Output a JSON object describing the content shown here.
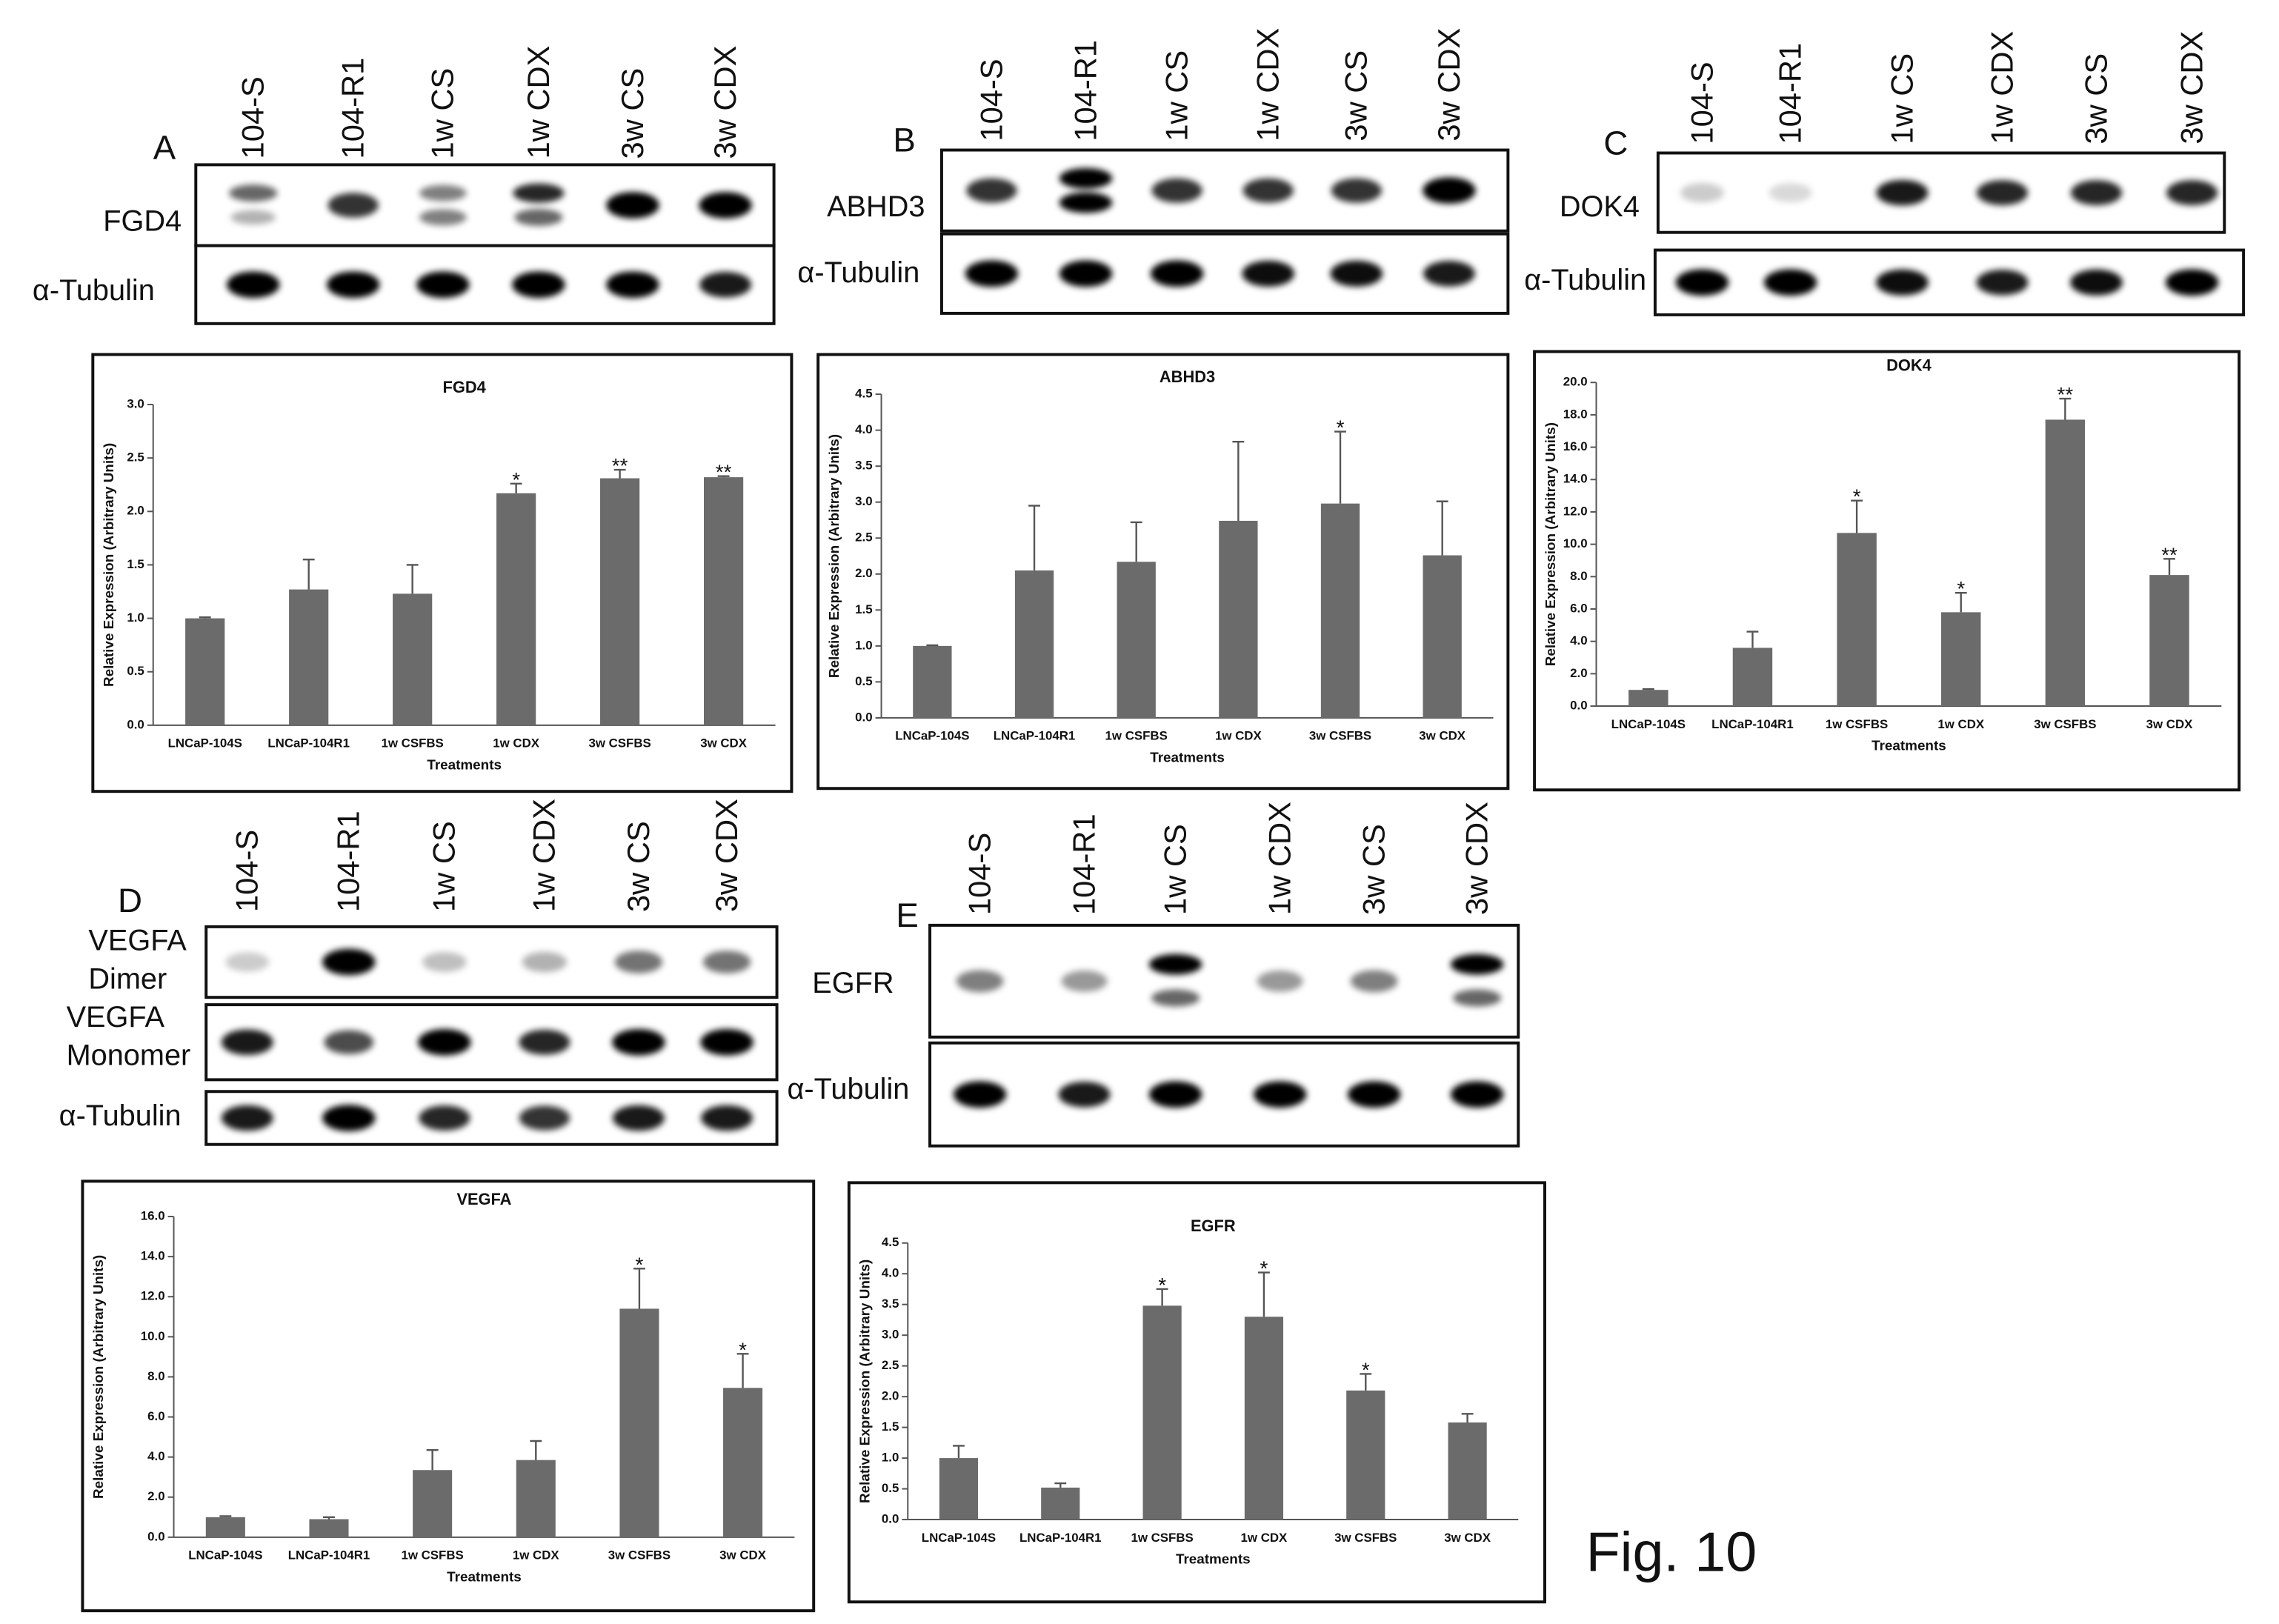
{
  "figure_label": "Fig. 10",
  "panels": [
    {
      "letter": "A",
      "lanes": [
        "104-S",
        "104-R1",
        "1w CS",
        "1w CDX",
        "3w CS",
        "3w CDX"
      ],
      "rows": [
        {
          "label": [
            "FGD4"
          ]
        },
        {
          "label": [
            "α-Tubulin"
          ]
        }
      ]
    },
    {
      "letter": "B",
      "lanes": [
        "104-S",
        "104-R1",
        "1w CS",
        "1w CDX",
        "3w CS",
        "3w CDX"
      ],
      "rows": [
        {
          "label": [
            "ABHD3"
          ]
        },
        {
          "label": [
            "α-Tubulin"
          ]
        }
      ]
    },
    {
      "letter": "C",
      "lanes": [
        "104-S",
        "104-R1",
        "1w CS",
        "1w CDX",
        "3w CS",
        "3w CDX"
      ],
      "rows": [
        {
          "label": [
            "DOK4"
          ]
        },
        {
          "label": [
            "α-Tubulin"
          ]
        }
      ]
    },
    {
      "letter": "D",
      "lanes": [
        "104-S",
        "104-R1",
        "1w CS",
        "1w CDX",
        "3w CS",
        "3w CDX"
      ],
      "rows": [
        {
          "label": [
            "VEGFA",
            "Dimer"
          ]
        },
        {
          "label": [
            "VEGFA",
            "Monomer"
          ]
        },
        {
          "label": [
            "α-Tubulin"
          ]
        }
      ]
    },
    {
      "letter": "E",
      "lanes": [
        "104-S",
        "104-R1",
        "1w CS",
        "1w CDX",
        "3w CS",
        "3w CDX"
      ],
      "rows": [
        {
          "label": [
            "EGFR"
          ]
        },
        {
          "label": [
            "α-Tubulin"
          ]
        }
      ]
    }
  ],
  "chart_data": [
    {
      "type": "bar",
      "title": "FGD4",
      "y_label": "Relative Expression (Arbitrary Units)",
      "x_label": "Treatments",
      "color": "#6b6b6b",
      "categories": [
        "LNCaP-104S",
        "LNCaP-104R1",
        "1w CSFBS",
        "1w CDX",
        "3w CSFBS",
        "3w CDX"
      ],
      "values": [
        1.0,
        1.27,
        1.23,
        2.17,
        2.31,
        2.32
      ],
      "errors": [
        0.01,
        0.28,
        0.27,
        0.09,
        0.08,
        0.01
      ],
      "annotations": [
        null,
        null,
        null,
        "*",
        "**",
        "**"
      ],
      "ylim": [
        0,
        3
      ],
      "yticks": [
        {
          "value": 0,
          "label": "0.0"
        },
        {
          "value": 0.5,
          "label": "0.5"
        },
        {
          "value": 1,
          "label": "1.0"
        },
        {
          "value": 1.5,
          "label": "1.5"
        },
        {
          "value": 2,
          "label": "2.0"
        },
        {
          "value": 2.5,
          "label": "2.5"
        },
        {
          "value": 3,
          "label": "3.0"
        }
      ]
    },
    {
      "type": "bar",
      "title": "ABHD3",
      "y_label": "Relative Expression (Arbitrary Units)",
      "x_label": "Treatments",
      "color": "#6b6b6b",
      "categories": [
        "LNCaP-104S",
        "LNCaP-104R1",
        "1w CSFBS",
        "1w CDX",
        "3w CSFBS",
        "3w CDX"
      ],
      "values": [
        1.0,
        2.05,
        2.17,
        2.74,
        2.98,
        2.26
      ],
      "errors": [
        0.01,
        0.9,
        0.55,
        1.1,
        1.0,
        0.75
      ],
      "annotations": [
        null,
        null,
        null,
        null,
        "*",
        null
      ],
      "ylim": [
        0,
        4.5
      ],
      "yticks": [
        {
          "value": 0,
          "label": "0.0"
        },
        {
          "value": 0.5,
          "label": "0.5"
        },
        {
          "value": 1,
          "label": "1.0"
        },
        {
          "value": 1.5,
          "label": "1.5"
        },
        {
          "value": 2,
          "label": "2.0"
        },
        {
          "value": 2.5,
          "label": "2.5"
        },
        {
          "value": 3,
          "label": "3.0"
        },
        {
          "value": 3.5,
          "label": "3.5"
        },
        {
          "value": 4,
          "label": "4.0"
        },
        {
          "value": 4.5,
          "label": "4.5"
        }
      ]
    },
    {
      "type": "bar",
      "title": "DOK4",
      "y_label": "Relative Expression (Arbitrary Units)",
      "x_label": "Treatments",
      "color": "#6b6b6b",
      "categories": [
        "LNCaP-104S",
        "LNCaP-104R1",
        "1w CSFBS",
        "1w CDX",
        "3w CSFBS",
        "3w CDX"
      ],
      "values": [
        1.0,
        3.6,
        10.7,
        5.8,
        17.7,
        8.1
      ],
      "errors": [
        0.05,
        1.0,
        2.0,
        1.2,
        1.3,
        1.0
      ],
      "annotations": [
        null,
        null,
        "*",
        "*",
        "**",
        "**"
      ],
      "ylim": [
        0,
        20
      ],
      "yticks": [
        {
          "value": 0,
          "label": "0.0"
        },
        {
          "value": 2,
          "label": "2.0"
        },
        {
          "value": 4,
          "label": "4.0"
        },
        {
          "value": 6,
          "label": "6.0"
        },
        {
          "value": 8,
          "label": "8.0"
        },
        {
          "value": 10,
          "label": "10.0"
        },
        {
          "value": 12,
          "label": "12.0"
        },
        {
          "value": 14,
          "label": "14.0"
        },
        {
          "value": 16,
          "label": "16.0"
        },
        {
          "value": 18,
          "label": "18.0"
        },
        {
          "value": 20,
          "label": "20.0"
        }
      ]
    },
    {
      "type": "bar",
      "title": "VEGFA",
      "y_label": "Relative Expression (Arbitrary Units)",
      "x_label": "Treatments",
      "color": "#6b6b6b",
      "categories": [
        "LNCaP-104S",
        "LNCaP-104R1",
        "1w CSFBS",
        "1w CDX",
        "3w CSFBS",
        "3w CDX"
      ],
      "values": [
        1.0,
        0.9,
        3.35,
        3.85,
        11.4,
        7.45
      ],
      "errors": [
        0.05,
        0.1,
        1.0,
        0.95,
        2.0,
        1.7
      ],
      "annotations": [
        null,
        null,
        null,
        null,
        "*",
        "*"
      ],
      "ylim": [
        0,
        16
      ],
      "yticks": [
        {
          "value": 0,
          "label": "0.0"
        },
        {
          "value": 2,
          "label": "2.0"
        },
        {
          "value": 4,
          "label": "4.0"
        },
        {
          "value": 6,
          "label": "6.0"
        },
        {
          "value": 8,
          "label": "8.0"
        },
        {
          "value": 10,
          "label": "10.0"
        },
        {
          "value": 12,
          "label": "12.0"
        },
        {
          "value": 14,
          "label": "14.0"
        },
        {
          "value": 16,
          "label": "16.0"
        }
      ]
    },
    {
      "type": "bar",
      "title": "EGFR",
      "y_label": "Relative Expression (Arbitrary Units)",
      "x_label": "Treatments",
      "color": "#6b6b6b",
      "categories": [
        "LNCaP-104S",
        "LNCaP-104R1",
        "1w CSFBS",
        "1w CDX",
        "3w CSFBS",
        "3w CDX"
      ],
      "values": [
        1.0,
        0.52,
        3.48,
        3.3,
        2.1,
        1.58
      ],
      "errors": [
        0.2,
        0.07,
        0.27,
        0.72,
        0.27,
        0.14
      ],
      "annotations": [
        null,
        null,
        "*",
        "*",
        "*",
        null
      ],
      "ylim": [
        0,
        4.5
      ],
      "yticks": [
        {
          "value": 0,
          "label": "0.0"
        },
        {
          "value": 0.5,
          "label": "0.5"
        },
        {
          "value": 1,
          "label": "1.0"
        },
        {
          "value": 1.5,
          "label": "1.5"
        },
        {
          "value": 2,
          "label": "2.0"
        },
        {
          "value": 2.5,
          "label": "2.5"
        },
        {
          "value": 3,
          "label": "3.0"
        },
        {
          "value": 3.5,
          "label": "3.5"
        },
        {
          "value": 4,
          "label": "4.0"
        },
        {
          "value": 4.5,
          "label": "4.5"
        }
      ]
    }
  ]
}
